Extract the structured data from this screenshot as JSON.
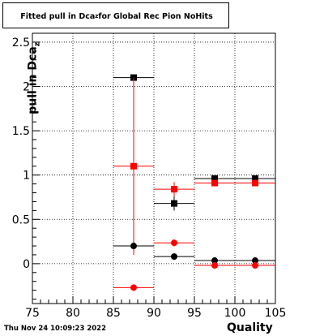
{
  "title": {
    "prefix": "Fitted pull in Dca",
    "subscript": "z",
    "suffix": " for Global Rec Pion NoHits"
  },
  "timestamp": "Thu Nov 24 10:09:23 2022",
  "chart_data": {
    "type": "scatter",
    "xlabel": "Quality",
    "ylabel_prefix": "pull in Dca",
    "ylabel_subscript": "z",
    "xlim": [
      75,
      105
    ],
    "ylim": [
      -0.45,
      2.6
    ],
    "xticks": [
      "75",
      "80",
      "85",
      "90",
      "95",
      "100",
      "105"
    ],
    "yticks": [
      "0",
      "0.5",
      "1",
      "1.5",
      "2",
      "2.5"
    ],
    "grid": true,
    "colors": {
      "black": "#000000",
      "red": "#ff0000"
    },
    "series": [
      {
        "marker": "square",
        "color": "black",
        "points": [
          {
            "x": 87.5,
            "y": 2.1,
            "xerr": 2.5,
            "yerr": 0.01
          },
          {
            "x": 92.5,
            "y": 0.68,
            "xerr": 2.5,
            "yerr": 0.08
          },
          {
            "x": 97.5,
            "y": 0.96,
            "xerr": 2.5,
            "yerr": 0.02
          },
          {
            "x": 102.5,
            "y": 0.96,
            "xerr": 2.5,
            "yerr": 0.02
          }
        ]
      },
      {
        "marker": "square",
        "color": "red",
        "points": [
          {
            "x": 87.5,
            "y": 1.1,
            "xerr": 2.5,
            "yerr": 1.0
          },
          {
            "x": 92.5,
            "y": 0.84,
            "xerr": 2.5,
            "yerr": 0.08
          },
          {
            "x": 97.5,
            "y": 0.91,
            "xerr": 2.5,
            "yerr": 0.02
          },
          {
            "x": 102.5,
            "y": 0.91,
            "xerr": 2.5,
            "yerr": 0.02
          }
        ]
      },
      {
        "marker": "circle",
        "color": "black",
        "points": [
          {
            "x": 87.5,
            "y": 0.2,
            "xerr": 2.5,
            "yerr": 0.01
          },
          {
            "x": 92.5,
            "y": 0.08,
            "xerr": 2.5,
            "yerr": 0.02
          },
          {
            "x": 97.5,
            "y": 0.035,
            "xerr": 2.5,
            "yerr": 0.01
          },
          {
            "x": 102.5,
            "y": 0.035,
            "xerr": 2.5,
            "yerr": 0.01
          }
        ]
      },
      {
        "marker": "circle",
        "color": "red",
        "points": [
          {
            "x": 87.5,
            "y": -0.27,
            "xerr": 2.5,
            "yerr": 0.01
          },
          {
            "x": 92.5,
            "y": 0.235,
            "xerr": 2.5,
            "yerr": 0.04
          },
          {
            "x": 97.5,
            "y": -0.02,
            "xerr": 2.5,
            "yerr": 0.01
          },
          {
            "x": 102.5,
            "y": -0.02,
            "xerr": 2.5,
            "yerr": 0.01
          }
        ]
      }
    ]
  }
}
